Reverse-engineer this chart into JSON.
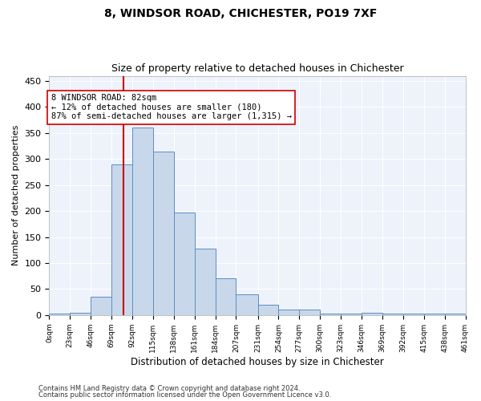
{
  "title": "8, WINDSOR ROAD, CHICHESTER, PO19 7XF",
  "subtitle": "Size of property relative to detached houses in Chichester",
  "xlabel": "Distribution of detached houses by size in Chichester",
  "ylabel": "Number of detached properties",
  "bar_heights": [
    3,
    5,
    35,
    290,
    360,
    315,
    197,
    127,
    70,
    40,
    20,
    10,
    10,
    3,
    3,
    5,
    3,
    3,
    3,
    3
  ],
  "bin_edges": [
    0,
    23,
    46,
    69,
    92,
    115,
    138,
    161,
    184,
    207,
    231,
    254,
    277,
    300,
    323,
    346,
    369,
    392,
    415,
    438,
    461
  ],
  "tick_labels": [
    "0sqm",
    "23sqm",
    "46sqm",
    "69sqm",
    "92sqm",
    "115sqm",
    "138sqm",
    "161sqm",
    "184sqm",
    "207sqm",
    "231sqm",
    "254sqm",
    "277sqm",
    "300sqm",
    "323sqm",
    "346sqm",
    "369sqm",
    "392sqm",
    "415sqm",
    "438sqm",
    "461sqm"
  ],
  "bar_color": "#c8d8ea",
  "bar_edge_color": "#5b8ec4",
  "vline_x": 82,
  "vline_color": "#cc0000",
  "annotation_text": "8 WINDSOR ROAD: 82sqm\n← 12% of detached houses are smaller (180)\n87% of semi-detached houses are larger (1,315) →",
  "annotation_box_color": "#ffffff",
  "annotation_box_edge": "#cc0000",
  "ylim": [
    0,
    460
  ],
  "yticks": [
    0,
    50,
    100,
    150,
    200,
    250,
    300,
    350,
    400,
    450
  ],
  "background_color": "#edf2fb",
  "footer_line1": "Contains HM Land Registry data © Crown copyright and database right 2024.",
  "footer_line2": "Contains public sector information licensed under the Open Government Licence v3.0.",
  "title_fontsize": 10,
  "subtitle_fontsize": 9,
  "figwidth": 6.0,
  "figheight": 5.0,
  "dpi": 100
}
